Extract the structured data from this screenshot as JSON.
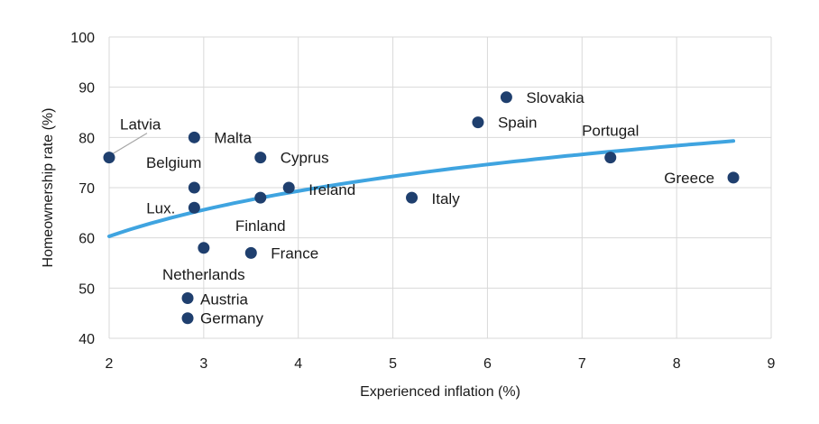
{
  "chart_data": {
    "type": "scatter",
    "xlabel": "Experienced inflation (%)",
    "ylabel": "Homeownership rate (%)",
    "xlim": [
      2,
      9
    ],
    "ylim": [
      40,
      100
    ],
    "xticks": [
      2,
      3,
      4,
      5,
      6,
      7,
      8,
      9
    ],
    "yticks": [
      40,
      50,
      60,
      70,
      80,
      90,
      100
    ],
    "grid": true,
    "colors": {
      "points": "#1f3f6e",
      "trend": "#3fa4e0",
      "grid": "#d9d9d9",
      "leader": "#a6a6a6"
    },
    "points": [
      {
        "label": "Latvia",
        "x": 2.0,
        "y": 76
      },
      {
        "label": "Malta",
        "x": 2.9,
        "y": 80
      },
      {
        "label": "Belgium",
        "x": 2.9,
        "y": 70
      },
      {
        "label": "Lux.",
        "x": 2.9,
        "y": 66
      },
      {
        "label": "Netherlands",
        "x": 3.0,
        "y": 58
      },
      {
        "label": "Austria",
        "x": 2.83,
        "y": 48
      },
      {
        "label": "Germany",
        "x": 2.83,
        "y": 44
      },
      {
        "label": "Cyprus",
        "x": 3.6,
        "y": 76
      },
      {
        "label": "Finland",
        "x": 3.6,
        "y": 68
      },
      {
        "label": "Ireland",
        "x": 3.9,
        "y": 70
      },
      {
        "label": "France",
        "x": 3.5,
        "y": 57
      },
      {
        "label": "Italy",
        "x": 5.2,
        "y": 68
      },
      {
        "label": "Spain",
        "x": 5.9,
        "y": 83
      },
      {
        "label": "Slovakia",
        "x": 6.2,
        "y": 88
      },
      {
        "label": "Portugal",
        "x": 7.3,
        "y": 76
      },
      {
        "label": "Greece",
        "x": 8.6,
        "y": 72
      }
    ],
    "trendline": {
      "type": "logarithmic",
      "x": [
        2.0,
        8.6
      ],
      "y": [
        60.3,
        79.3
      ]
    }
  }
}
